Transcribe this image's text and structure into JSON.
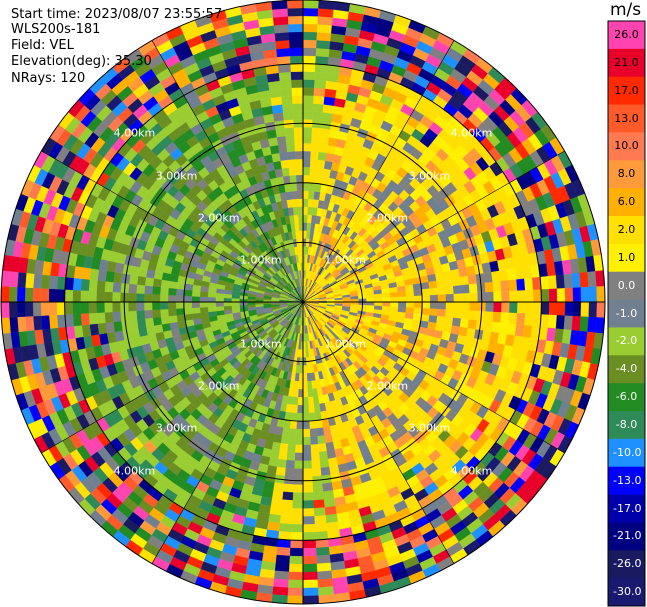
{
  "header": {
    "start_time": "Start time: 2023/08/07 23:55:57",
    "instrument": "WLS200s-181",
    "field": "Field: VEL",
    "elevation": "Elevation(deg): 35.30",
    "nrays": "NRays: 120"
  },
  "colorbar": {
    "unit": "m/s",
    "bins": [
      {
        "label": "26.0",
        "color": "#ff44b0"
      },
      {
        "label": "21.0",
        "color": "#e8002a"
      },
      {
        "label": "17.0",
        "color": "#ff2a00"
      },
      {
        "label": "13.0",
        "color": "#ff5a2a"
      },
      {
        "label": "10.0",
        "color": "#ff7a50"
      },
      {
        "label": "8.0",
        "color": "#ff9a3a"
      },
      {
        "label": "6.0",
        "color": "#ffb000"
      },
      {
        "label": "2.0",
        "color": "#ffe000"
      },
      {
        "label": "1.0",
        "color": "#fff000"
      },
      {
        "label": "0.0",
        "color": "#808080"
      },
      {
        "label": "-1.0",
        "color": "#708090"
      },
      {
        "label": "-2.0",
        "color": "#9acd32"
      },
      {
        "label": "-4.0",
        "color": "#6b8e23"
      },
      {
        "label": "-6.0",
        "color": "#228b22"
      },
      {
        "label": "-8.0",
        "color": "#2e8b57"
      },
      {
        "label": "-10.0",
        "color": "#1e90ff"
      },
      {
        "label": "-13.0",
        "color": "#0000ff"
      },
      {
        "label": "-17.0",
        "color": "#0000aa"
      },
      {
        "label": "-21.0",
        "color": "#000080"
      },
      {
        "label": "-26.0",
        "color": "#1a1a60"
      },
      {
        "label": "-30.0",
        "color": "#191970"
      }
    ]
  },
  "chart_data": {
    "type": "heatmap",
    "projection": "polar PPI",
    "field": "VEL",
    "units": "m/s",
    "elevation_deg": 35.3,
    "nrays": 120,
    "range_rings_km": [
      1,
      2,
      3,
      4
    ],
    "range_ring_labels": [
      "1.00km",
      "2.00km",
      "3.00km",
      "4.00km"
    ],
    "max_range_km": 5,
    "grid": true,
    "value_pattern": {
      "east_half": "positive, mostly 0 to 6 m/s",
      "west_half": "negative, mostly -1 to -8 m/s",
      "outer_ranges": "noisy, full -30 to 26 m/s spread"
    }
  }
}
